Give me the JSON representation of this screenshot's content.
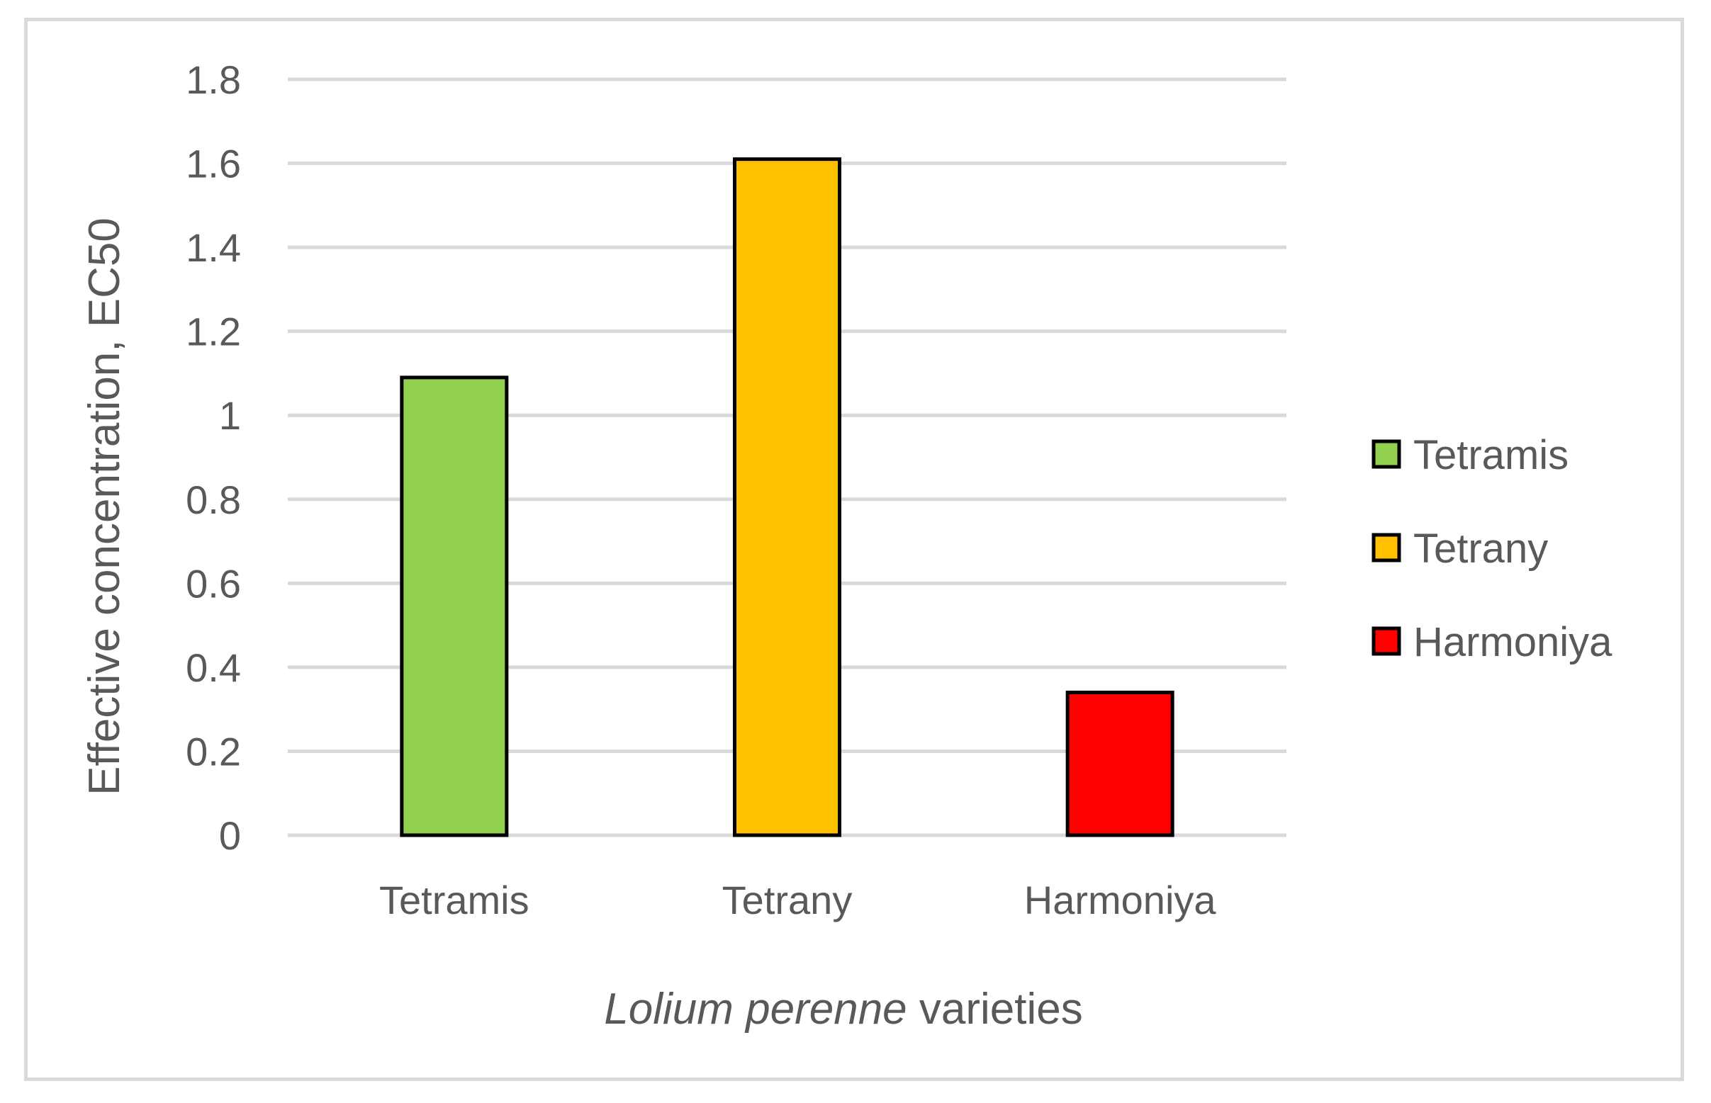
{
  "chart_data": {
    "type": "bar",
    "categories": [
      "Tetramis",
      "Tetrany",
      "Harmoniya"
    ],
    "values": [
      1.09,
      1.61,
      0.34
    ],
    "colors": [
      "#92d050",
      "#ffc000",
      "#ff0000"
    ],
    "ylabel": "Effective concentration, EC50",
    "xlabel_italic": "Lolium perenne",
    "xlabel_rest": " varieties",
    "ylim": [
      0,
      1.8
    ],
    "yticks": [
      0,
      0.2,
      0.4,
      0.6,
      0.8,
      1,
      1.2,
      1.4,
      1.6,
      1.8
    ],
    "ytick_labels": [
      "0",
      "0.2",
      "0.4",
      "0.6",
      "0.8",
      "1",
      "1.2",
      "1.4",
      "1.6",
      "1.8"
    ],
    "grid": true,
    "legend_position": "right",
    "legend": [
      "Tetramis",
      "Tetrany",
      "Harmoniya"
    ]
  }
}
